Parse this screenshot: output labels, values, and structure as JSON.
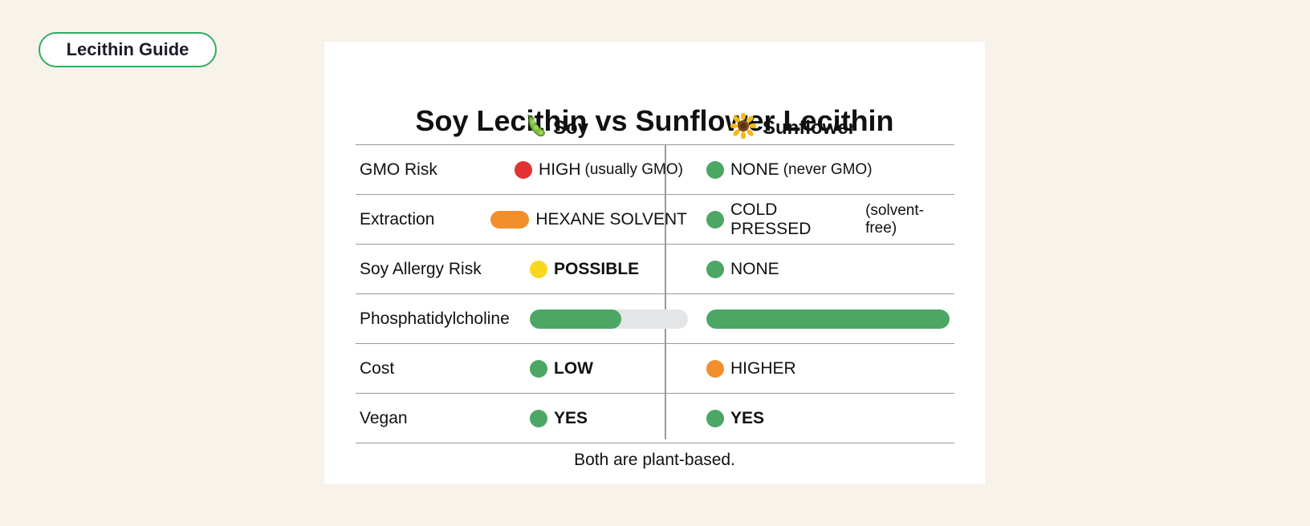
{
  "badge": {
    "label": "Lecithin Guide"
  },
  "card": {
    "title": "Soy Lecithin vs Sunflower Lecithin",
    "columns": [
      {
        "label": "Soy",
        "icon": "soybean-icon"
      },
      {
        "label": "Sunflower",
        "icon": "sunflower-icon"
      }
    ],
    "rows": [
      {
        "label": "GMO Risk",
        "soy": {
          "value": "HIGH",
          "note": "(usually GMO)",
          "indicator": "dot",
          "color": "#e23131"
        },
        "sunflower": {
          "value": "NONE",
          "note": "(never GMO)",
          "indicator": "dot",
          "color": "#4ca664"
        }
      },
      {
        "label": "Extraction",
        "soy": {
          "value": "HEXANE SOLVENT",
          "note": "",
          "indicator": "capsule",
          "color": "#f28f2b"
        },
        "sunflower": {
          "value": "COLD PRESSED",
          "note": "(solvent-free)",
          "indicator": "dot",
          "color": "#4ca664"
        }
      },
      {
        "label": "Soy Allergy Risk",
        "soy": {
          "value": "POSSIBLE",
          "note": "",
          "indicator": "dot",
          "color": "#f7d81c"
        },
        "sunflower": {
          "value": "NONE",
          "note": "",
          "indicator": "dot",
          "color": "#4ca664"
        }
      },
      {
        "label": "Phosphatidylcholine",
        "soy": {
          "level": 0.58,
          "indicator": "bar",
          "color": "#4ca664"
        },
        "sunflower": {
          "level": 1.0,
          "indicator": "bar",
          "color": "#4ca664"
        }
      },
      {
        "label": "Cost",
        "soy": {
          "value": "LOW",
          "note": "",
          "indicator": "dot",
          "color": "#4ca664"
        },
        "sunflower": {
          "value": "HIGHER",
          "note": "",
          "indicator": "dot",
          "color": "#f28f2b"
        }
      },
      {
        "label": "Vegan",
        "soy": {
          "value": "YES",
          "note": "",
          "indicator": "dot",
          "color": "#4ca664"
        },
        "sunflower": {
          "value": "YES",
          "note": "",
          "indicator": "dot",
          "color": "#4ca664"
        }
      }
    ],
    "footer": "Both are plant-based."
  }
}
